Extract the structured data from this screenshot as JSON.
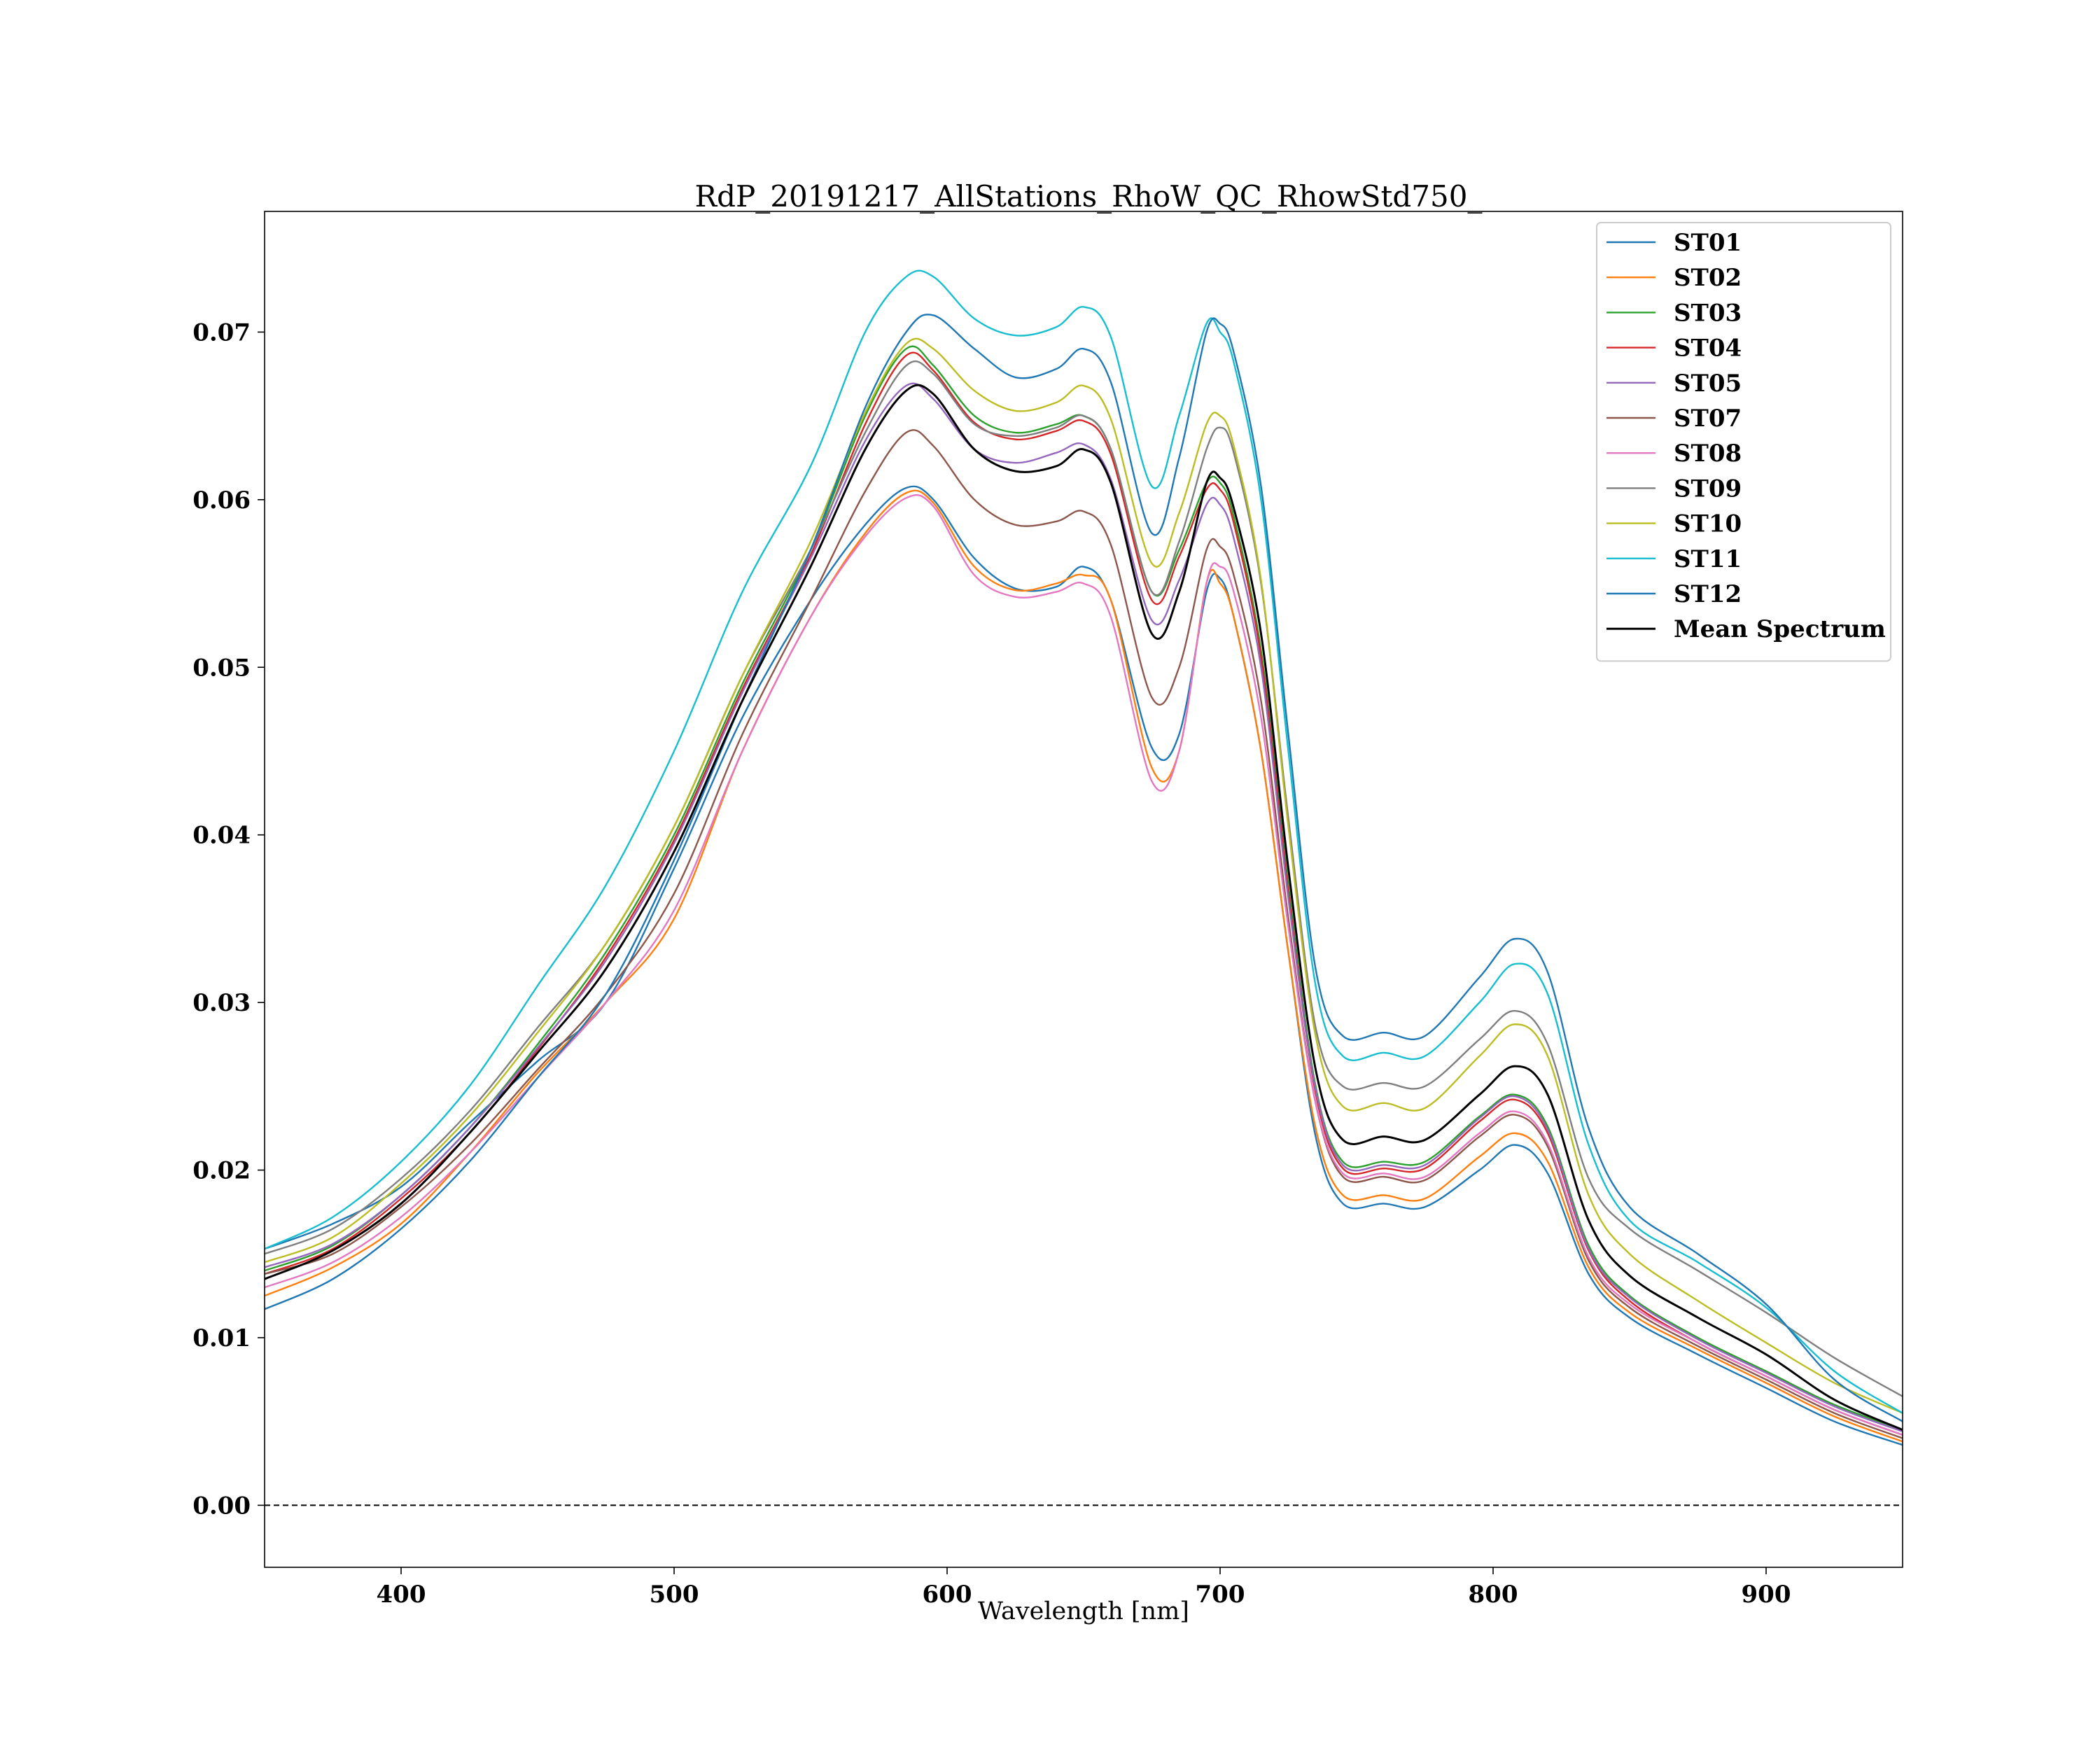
{
  "chart_data": {
    "type": "line",
    "title": "RdP_20191217_AllStations_RhoW_QC_RhowStd750_",
    "xlabel": "Wavelength [nm]",
    "ylabel": "",
    "xlim": [
      350,
      950
    ],
    "ylim": [
      -0.0037,
      0.0772
    ],
    "x_ticks": [
      400,
      500,
      600,
      700,
      800,
      900
    ],
    "x_tick_labels": [
      "400",
      "500",
      "600",
      "700",
      "800",
      "900"
    ],
    "y_ticks": [
      0.0,
      0.01,
      0.02,
      0.03,
      0.04,
      0.05,
      0.06,
      0.07
    ],
    "y_tick_labels": [
      "0.00",
      "0.01",
      "0.02",
      "0.03",
      "0.04",
      "0.05",
      "0.06",
      "0.07"
    ],
    "grid": false,
    "legend_position": "top-right",
    "reference_line": {
      "y": 0.0,
      "style": "dashed",
      "color": "#000000"
    },
    "x": [
      350,
      375,
      400,
      425,
      450,
      475,
      500,
      525,
      550,
      570,
      585,
      595,
      610,
      625,
      640,
      650,
      660,
      675,
      685,
      695,
      700,
      705,
      715,
      725,
      735,
      745,
      760,
      775,
      795,
      808,
      820,
      835,
      850,
      875,
      900,
      925,
      950
    ],
    "series": [
      {
        "name": "ST01",
        "color": "#1f77b4",
        "values": [
          0.0153,
          0.0168,
          0.019,
          0.0228,
          0.0265,
          0.03,
          0.038,
          0.047,
          0.054,
          0.0585,
          0.0607,
          0.06,
          0.0565,
          0.0547,
          0.0548,
          0.056,
          0.054,
          0.0452,
          0.046,
          0.0545,
          0.0553,
          0.053,
          0.045,
          0.033,
          0.022,
          0.018,
          0.018,
          0.0178,
          0.02,
          0.0215,
          0.0198,
          0.0138,
          0.0112,
          0.009,
          0.007,
          0.005,
          0.0036
        ]
      },
      {
        "name": "ST02",
        "color": "#ff7f0e",
        "values": [
          0.0125,
          0.0142,
          0.0168,
          0.021,
          0.0258,
          0.03,
          0.035,
          0.045,
          0.053,
          0.058,
          0.0604,
          0.0598,
          0.056,
          0.0546,
          0.055,
          0.0555,
          0.054,
          0.044,
          0.045,
          0.055,
          0.055,
          0.053,
          0.045,
          0.033,
          0.0225,
          0.0185,
          0.0185,
          0.0183,
          0.0208,
          0.0222,
          0.0205,
          0.0142,
          0.0115,
          0.0093,
          0.0073,
          0.0053,
          0.0038
        ]
      },
      {
        "name": "ST03",
        "color": "#2ca02c",
        "values": [
          0.014,
          0.0155,
          0.0185,
          0.0225,
          0.0275,
          0.033,
          0.04,
          0.049,
          0.057,
          0.065,
          0.069,
          0.068,
          0.065,
          0.064,
          0.0645,
          0.065,
          0.063,
          0.0545,
          0.057,
          0.061,
          0.061,
          0.059,
          0.051,
          0.037,
          0.025,
          0.0205,
          0.0205,
          0.0205,
          0.0232,
          0.0245,
          0.0226,
          0.0155,
          0.0125,
          0.01,
          0.008,
          0.006,
          0.0045
        ]
      },
      {
        "name": "ST04",
        "color": "#d62728",
        "values": [
          0.0138,
          0.0153,
          0.0183,
          0.0222,
          0.0272,
          0.0327,
          0.0397,
          0.0487,
          0.0567,
          0.0645,
          0.0686,
          0.0677,
          0.0646,
          0.0636,
          0.0641,
          0.0647,
          0.0627,
          0.054,
          0.0566,
          0.0606,
          0.0606,
          0.0586,
          0.0506,
          0.0366,
          0.0246,
          0.0201,
          0.0201,
          0.0201,
          0.0229,
          0.0242,
          0.0222,
          0.0152,
          0.0122,
          0.0097,
          0.0077,
          0.0057,
          0.0042
        ]
      },
      {
        "name": "ST05",
        "color": "#9467bd",
        "values": [
          0.0142,
          0.0156,
          0.0185,
          0.0225,
          0.0273,
          0.0325,
          0.0395,
          0.0485,
          0.0565,
          0.0635,
          0.0668,
          0.066,
          0.063,
          0.0622,
          0.0628,
          0.0633,
          0.0612,
          0.0528,
          0.0552,
          0.0597,
          0.0597,
          0.0577,
          0.05,
          0.0362,
          0.0248,
          0.0203,
          0.0203,
          0.0203,
          0.0231,
          0.0244,
          0.0224,
          0.0153,
          0.0124,
          0.0099,
          0.0079,
          0.0059,
          0.0044
        ]
      },
      {
        "name": "ST07",
        "color": "#8c564b",
        "values": [
          0.0138,
          0.015,
          0.0178,
          0.0215,
          0.026,
          0.0305,
          0.0365,
          0.046,
          0.054,
          0.0605,
          0.064,
          0.0632,
          0.06,
          0.0585,
          0.0587,
          0.0593,
          0.0573,
          0.0482,
          0.05,
          0.057,
          0.0572,
          0.0555,
          0.048,
          0.035,
          0.024,
          0.0196,
          0.0196,
          0.0194,
          0.022,
          0.0233,
          0.0214,
          0.0146,
          0.0118,
          0.0095,
          0.0075,
          0.0055,
          0.004
        ]
      },
      {
        "name": "ST08",
        "color": "#e377c2",
        "values": [
          0.013,
          0.0145,
          0.0172,
          0.021,
          0.0255,
          0.03,
          0.0355,
          0.045,
          0.053,
          0.0578,
          0.0601,
          0.0596,
          0.0555,
          0.0542,
          0.0545,
          0.055,
          0.053,
          0.0432,
          0.045,
          0.055,
          0.056,
          0.0545,
          0.047,
          0.0345,
          0.024,
          0.0198,
          0.0198,
          0.0196,
          0.0222,
          0.0235,
          0.0216,
          0.0148,
          0.012,
          0.0097,
          0.0077,
          0.0057,
          0.0042
        ]
      },
      {
        "name": "ST09",
        "color": "#7f7f7f",
        "values": [
          0.015,
          0.0165,
          0.0195,
          0.0235,
          0.0285,
          0.0335,
          0.0405,
          0.0495,
          0.057,
          0.064,
          0.068,
          0.0675,
          0.0645,
          0.0638,
          0.0643,
          0.065,
          0.063,
          0.0545,
          0.0575,
          0.063,
          0.0643,
          0.0628,
          0.055,
          0.041,
          0.0285,
          0.025,
          0.0252,
          0.025,
          0.0278,
          0.0295,
          0.0275,
          0.0195,
          0.0165,
          0.014,
          0.0115,
          0.0088,
          0.0065
        ]
      },
      {
        "name": "ST10",
        "color": "#bcbd22",
        "values": [
          0.0145,
          0.016,
          0.0192,
          0.0232,
          0.0282,
          0.0335,
          0.0405,
          0.0495,
          0.0575,
          0.0652,
          0.0693,
          0.069,
          0.0665,
          0.0653,
          0.0658,
          0.0668,
          0.0648,
          0.0562,
          0.0592,
          0.0645,
          0.065,
          0.0632,
          0.0552,
          0.0405,
          0.028,
          0.0238,
          0.024,
          0.0237,
          0.0268,
          0.0287,
          0.0268,
          0.0185,
          0.015,
          0.0122,
          0.0097,
          0.0073,
          0.0055
        ]
      },
      {
        "name": "ST11",
        "color": "#17becf",
        "values": [
          0.0153,
          0.0172,
          0.0205,
          0.025,
          0.031,
          0.037,
          0.045,
          0.0545,
          0.062,
          0.07,
          0.0733,
          0.0733,
          0.0708,
          0.0698,
          0.0703,
          0.0715,
          0.0697,
          0.0608,
          0.065,
          0.0705,
          0.07,
          0.0682,
          0.06,
          0.045,
          0.031,
          0.0268,
          0.027,
          0.0268,
          0.03,
          0.0323,
          0.0305,
          0.0215,
          0.017,
          0.0145,
          0.0118,
          0.008,
          0.0055
        ]
      },
      {
        "name": "ST12",
        "color": "#1f77b4",
        "values": [
          0.0117,
          0.0135,
          0.0165,
          0.0205,
          0.0255,
          0.0305,
          0.0385,
          0.048,
          0.057,
          0.0655,
          0.07,
          0.071,
          0.069,
          0.0673,
          0.0678,
          0.069,
          0.067,
          0.058,
          0.0625,
          0.07,
          0.0705,
          0.0688,
          0.0608,
          0.046,
          0.032,
          0.028,
          0.0282,
          0.028,
          0.0315,
          0.0338,
          0.0318,
          0.0225,
          0.0178,
          0.015,
          0.012,
          0.0075,
          0.005
        ]
      },
      {
        "name": "Mean Spectrum",
        "color": "#000000",
        "values": [
          0.0135,
          0.0152,
          0.018,
          0.0222,
          0.027,
          0.032,
          0.039,
          0.048,
          0.056,
          0.063,
          0.0665,
          0.0663,
          0.063,
          0.0617,
          0.062,
          0.063,
          0.061,
          0.052,
          0.0545,
          0.061,
          0.0613,
          0.0595,
          0.052,
          0.038,
          0.026,
          0.0218,
          0.022,
          0.0218,
          0.0245,
          0.0262,
          0.0245,
          0.017,
          0.0137,
          0.0112,
          0.009,
          0.0063,
          0.0045
        ]
      }
    ]
  }
}
